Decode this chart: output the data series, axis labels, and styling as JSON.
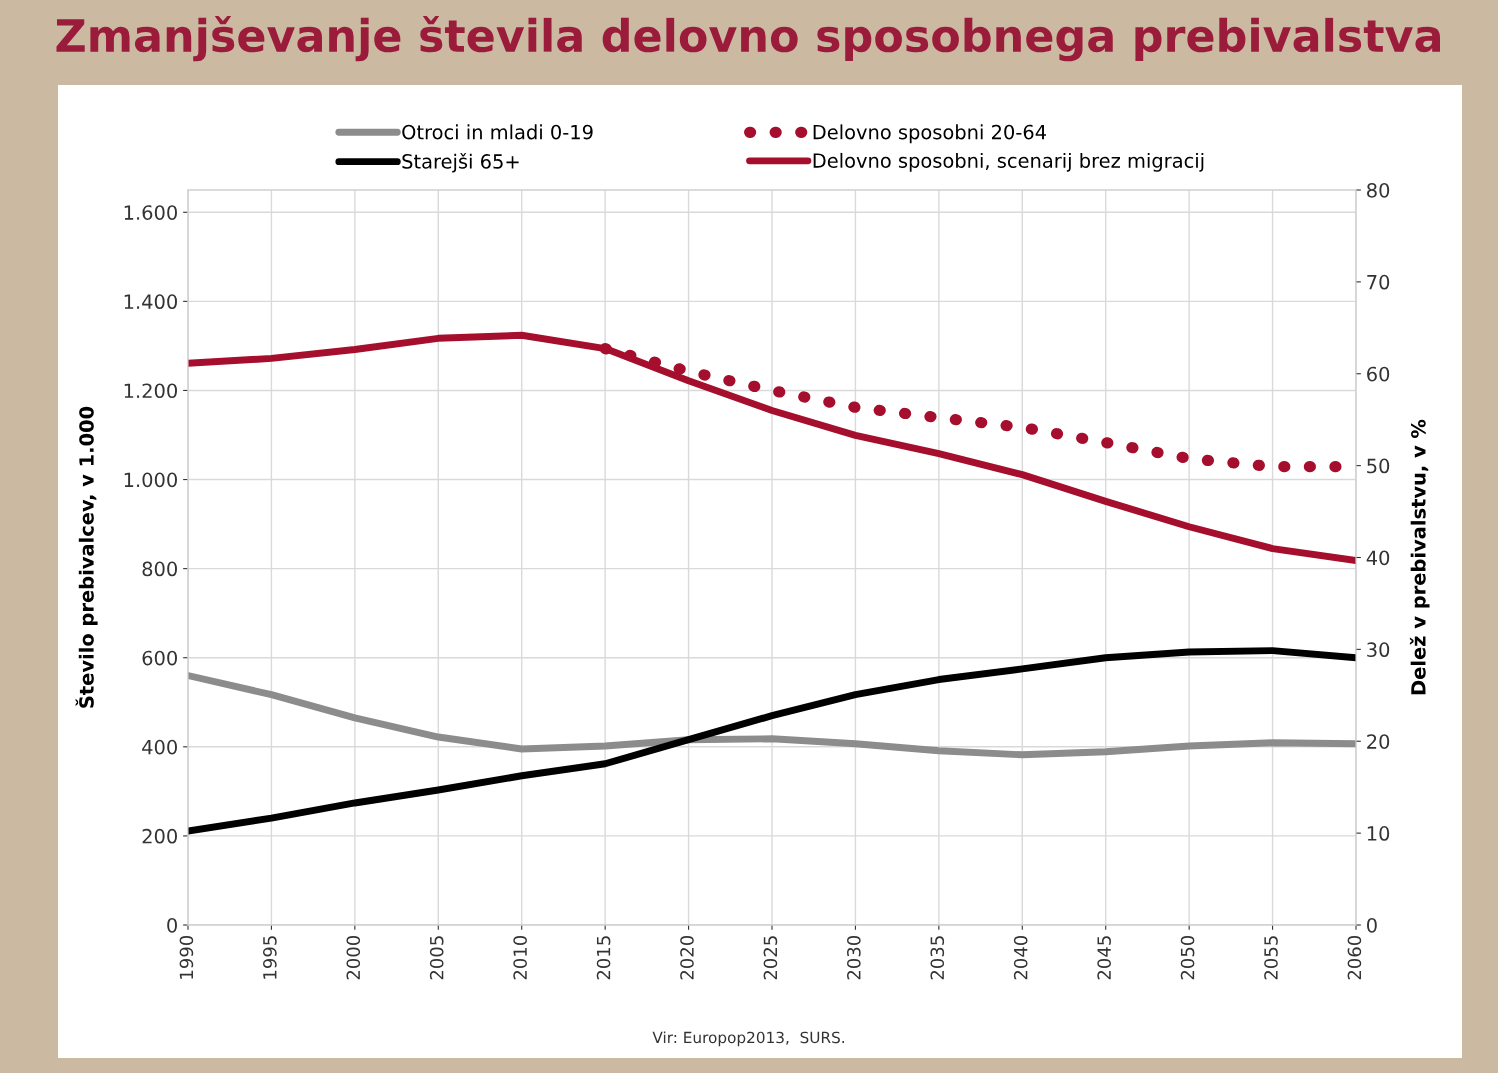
{
  "chart_data": {
    "type": "line",
    "title": "Zmanjševanje števila delovno sposobnega prebivalstva",
    "x": [
      1990,
      1995,
      2000,
      2005,
      2010,
      2015,
      2020,
      2025,
      2030,
      2035,
      2040,
      2045,
      2050,
      2055,
      2060
    ],
    "series": [
      {
        "name": "Otroci in mladi 0-19",
        "color": "#8c8c8c",
        "line_style": "solid",
        "values": [
          560,
          517,
          465,
          422,
          395,
          402,
          416,
          418,
          407,
          391,
          382,
          389,
          402,
          409,
          407
        ]
      },
      {
        "name": "Starejši 65+",
        "color": "#000000",
        "line_style": "solid",
        "values": [
          211,
          240,
          274,
          303,
          335,
          362,
          416,
          470,
          517,
          551,
          575,
          600,
          613,
          616,
          600
        ]
      },
      {
        "name": "Delovno sposobni 20-64",
        "color": "#a50f2d",
        "line_style": "dotted",
        "values": [
          null,
          null,
          null,
          null,
          null,
          1294,
          1243,
          1200,
          1162,
          1139,
          1117,
          1083,
          1047,
          1029,
          1029
        ]
      },
      {
        "name": "Delovno sposobni, scenarij brez migracij",
        "color": "#a50f2d",
        "line_style": "solid",
        "values": [
          1261,
          1272,
          1292,
          1317,
          1324,
          1294,
          1222,
          1155,
          1099,
          1058,
          1011,
          951,
          894,
          845,
          818
        ]
      }
    ],
    "xlim": [
      1990,
      2060
    ],
    "xticks": [
      1990,
      1995,
      2000,
      2005,
      2010,
      2015,
      2020,
      2025,
      2030,
      2035,
      2040,
      2045,
      2050,
      2055,
      2060
    ],
    "ylim": [
      0,
      1650
    ],
    "yticks": [
      0,
      200,
      400,
      600,
      800,
      {
        "value": 1000,
        "label": "1.000"
      },
      {
        "value": 1200,
        "label": "1.200"
      },
      {
        "value": 1400,
        "label": "1.400"
      },
      {
        "value": 1600,
        "label": "1.600"
      }
    ],
    "y2lim": [
      0,
      80
    ],
    "y2ticks": [
      0,
      10,
      20,
      30,
      40,
      50,
      60,
      70,
      80
    ],
    "ylabel": "Število prebivalcev, v 1.000",
    "y2label": "Delež v prebivalstvu, v %",
    "grid": true,
    "legend": "top",
    "marker": "none",
    "annotations": [
      "Vir: Europop2013,  SURS."
    ]
  }
}
